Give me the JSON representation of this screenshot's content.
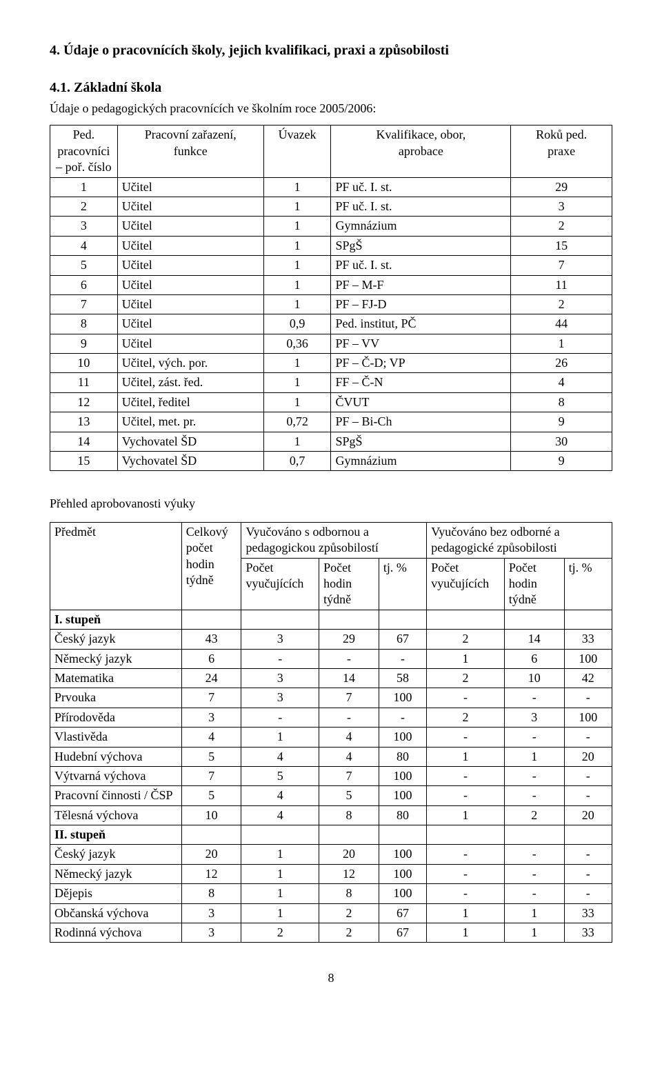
{
  "section_title": "4.  Údaje o pracovnících školy, jejich kvalifikaci, praxi a způsobilosti",
  "subsection_title": "4.1.  Základní škola",
  "subsection_lead": "Údaje o pedagogických pracovnících ve školním roce 2005/2006:",
  "page_number": "8",
  "t1": {
    "headers": {
      "c1a": "Ped. pracovníci",
      "c1b": "– poř. číslo",
      "c2a": "Pracovní zařazení,",
      "c2b": "funkce",
      "c3": "Úvazek",
      "c4a": "Kvalifikace, obor,",
      "c4b": "aprobace",
      "c5a": "Roků ped.",
      "c5b": "praxe"
    },
    "rows": [
      {
        "n": "1",
        "role": "Učitel",
        "u": "1",
        "q": "PF uč. I. st.",
        "y": "29"
      },
      {
        "n": "2",
        "role": "Učitel",
        "u": "1",
        "q": "PF uč. I. st.",
        "y": "3"
      },
      {
        "n": "3",
        "role": "Učitel",
        "u": "1",
        "q": "Gymnázium",
        "y": "2"
      },
      {
        "n": "4",
        "role": "Učitel",
        "u": "1",
        "q": "SPgŠ",
        "y": "15"
      },
      {
        "n": "5",
        "role": "Učitel",
        "u": "1",
        "q": "PF uč. I. st.",
        "y": "7"
      },
      {
        "n": "6",
        "role": "Učitel",
        "u": "1",
        "q": "PF – M-F",
        "y": "11"
      },
      {
        "n": "7",
        "role": "Učitel",
        "u": "1",
        "q": "PF – FJ-D",
        "y": "2"
      },
      {
        "n": "8",
        "role": "Učitel",
        "u": "0,9",
        "q": "Ped. institut, PČ",
        "y": "44"
      },
      {
        "n": "9",
        "role": "Učitel",
        "u": "0,36",
        "q": "PF – VV",
        "y": "1"
      },
      {
        "n": "10",
        "role": "Učitel, vých. por.",
        "u": "1",
        "q": "PF – Č-D; VP",
        "y": "26"
      },
      {
        "n": "11",
        "role": "Učitel, zást. řed.",
        "u": "1",
        "q": "FF – Č-N",
        "y": "4"
      },
      {
        "n": "12",
        "role": "Učitel, ředitel",
        "u": "1",
        "q": "ČVUT",
        "y": "8"
      },
      {
        "n": "13",
        "role": "Učitel, met. pr.",
        "u": "0,72",
        "q": "PF – Bi-Ch",
        "y": "9"
      },
      {
        "n": "14",
        "role": "Vychovatel ŠD",
        "u": "1",
        "q": "SPgŠ",
        "y": "30"
      },
      {
        "n": "15",
        "role": "Vychovatel ŠD",
        "u": "0,7",
        "q": "Gymnázium",
        "y": "9"
      }
    ]
  },
  "t2_title": "Přehled aprobovanosti výuky",
  "t2": {
    "top_headers": {
      "subject": "Předmět",
      "total_a": "Celkový",
      "total_b": "počet",
      "total_c": "hodin",
      "total_d": "týdně",
      "with_a": "Vyučováno s odbornou a",
      "with_b": "pedagogickou způsobilostí",
      "without_a": "Vyučováno bez odborné a",
      "without_b": "pedagogické způsobilosti",
      "teachers_a": "Počet",
      "teachers_b": "vyučujících",
      "hours_a": "Počet",
      "hours_b": "hodin",
      "hours_c": "týdně",
      "pct": "tj. %"
    },
    "group1_label": "I. stupeň",
    "group1_rows": [
      {
        "s": "Český jazyk",
        "tot": "43",
        "wt": "3",
        "wh": "29",
        "wp": "67",
        "nt": "2",
        "nh": "14",
        "np": "33"
      },
      {
        "s": "Německý jazyk",
        "tot": "6",
        "wt": "-",
        "wh": "-",
        "wp": "-",
        "nt": "1",
        "nh": "6",
        "np": "100"
      },
      {
        "s": "Matematika",
        "tot": "24",
        "wt": "3",
        "wh": "14",
        "wp": "58",
        "nt": "2",
        "nh": "10",
        "np": "42"
      },
      {
        "s": "Prvouka",
        "tot": "7",
        "wt": "3",
        "wh": "7",
        "wp": "100",
        "nt": "-",
        "nh": "-",
        "np": "-"
      },
      {
        "s": "Přírodověda",
        "tot": "3",
        "wt": "-",
        "wh": "-",
        "wp": "-",
        "nt": "2",
        "nh": "3",
        "np": "100"
      },
      {
        "s": "Vlastivěda",
        "tot": "4",
        "wt": "1",
        "wh": "4",
        "wp": "100",
        "nt": "-",
        "nh": "-",
        "np": "-"
      },
      {
        "s": "Hudební výchova",
        "tot": "5",
        "wt": "4",
        "wh": "4",
        "wp": "80",
        "nt": "1",
        "nh": "1",
        "np": "20"
      },
      {
        "s": "Výtvarná výchova",
        "tot": "7",
        "wt": "5",
        "wh": "7",
        "wp": "100",
        "nt": "-",
        "nh": "-",
        "np": "-"
      },
      {
        "s": "Pracovní činnosti / ČSP",
        "tot": "5",
        "wt": "4",
        "wh": "5",
        "wp": "100",
        "nt": "-",
        "nh": "-",
        "np": "-"
      },
      {
        "s": "Tělesná výchova",
        "tot": "10",
        "wt": "4",
        "wh": "8",
        "wp": "80",
        "nt": "1",
        "nh": "2",
        "np": "20"
      }
    ],
    "group2_label": "II. stupeň",
    "group2_rows": [
      {
        "s": "Český jazyk",
        "tot": "20",
        "wt": "1",
        "wh": "20",
        "wp": "100",
        "nt": "-",
        "nh": "-",
        "np": "-"
      },
      {
        "s": "Německý jazyk",
        "tot": "12",
        "wt": "1",
        "wh": "12",
        "wp": "100",
        "nt": "-",
        "nh": "-",
        "np": "-"
      },
      {
        "s": "Dějepis",
        "tot": "8",
        "wt": "1",
        "wh": "8",
        "wp": "100",
        "nt": "-",
        "nh": "-",
        "np": "-"
      },
      {
        "s": "Občanská výchova",
        "tot": "3",
        "wt": "1",
        "wh": "2",
        "wp": "67",
        "nt": "1",
        "nh": "1",
        "np": "33"
      },
      {
        "s": "Rodinná výchova",
        "tot": "3",
        "wt": "2",
        "wh": "2",
        "wp": "67",
        "nt": "1",
        "nh": "1",
        "np": "33"
      }
    ]
  }
}
